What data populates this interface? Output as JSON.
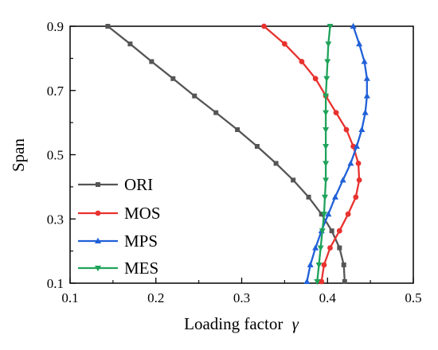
{
  "chart_data": {
    "type": "line",
    "xlabel": "Loading factor",
    "xlabel_symbol": "γ",
    "ylabel": "Span",
    "xlim": [
      0.1,
      0.5
    ],
    "ylim": [
      0.1,
      0.9
    ],
    "x_ticks": [
      "0.1",
      "0.2",
      "0.3",
      "0.4",
      "0.5"
    ],
    "x_tick_values": [
      0.1,
      0.2,
      0.3,
      0.4,
      0.5
    ],
    "y_ticks": [
      "0.1",
      "0.3",
      "0.5",
      "0.7",
      "0.9"
    ],
    "y_tick_values": [
      0.1,
      0.3,
      0.5,
      0.7,
      0.9
    ],
    "grid": false,
    "legend_position": "bottom-left",
    "series": [
      {
        "name": "ORI",
        "color": "#555555",
        "marker": "square",
        "points": [
          [
            0.144,
            0.9
          ],
          [
            0.17,
            0.845
          ],
          [
            0.195,
            0.79
          ],
          [
            0.22,
            0.737
          ],
          [
            0.245,
            0.683
          ],
          [
            0.27,
            0.631
          ],
          [
            0.295,
            0.578
          ],
          [
            0.318,
            0.526
          ],
          [
            0.34,
            0.473
          ],
          [
            0.36,
            0.421
          ],
          [
            0.378,
            0.368
          ],
          [
            0.393,
            0.315
          ],
          [
            0.405,
            0.263
          ],
          [
            0.414,
            0.21
          ],
          [
            0.419,
            0.157
          ],
          [
            0.42,
            0.105
          ]
        ]
      },
      {
        "name": "MOS",
        "color": "#e8322f",
        "marker": "circle",
        "points": [
          [
            0.326,
            0.9
          ],
          [
            0.35,
            0.845
          ],
          [
            0.37,
            0.79
          ],
          [
            0.386,
            0.737
          ],
          [
            0.398,
            0.683
          ],
          [
            0.41,
            0.631
          ],
          [
            0.422,
            0.578
          ],
          [
            0.43,
            0.526
          ],
          [
            0.436,
            0.473
          ],
          [
            0.437,
            0.421
          ],
          [
            0.433,
            0.368
          ],
          [
            0.424,
            0.315
          ],
          [
            0.414,
            0.263
          ],
          [
            0.403,
            0.21
          ],
          [
            0.396,
            0.157
          ],
          [
            0.393,
            0.105
          ]
        ]
      },
      {
        "name": "MPS",
        "color": "#2060d8",
        "marker": "triangle-up",
        "points": [
          [
            0.43,
            0.9
          ],
          [
            0.437,
            0.845
          ],
          [
            0.443,
            0.79
          ],
          [
            0.446,
            0.737
          ],
          [
            0.446,
            0.683
          ],
          [
            0.444,
            0.631
          ],
          [
            0.44,
            0.578
          ],
          [
            0.434,
            0.526
          ],
          [
            0.427,
            0.473
          ],
          [
            0.418,
            0.421
          ],
          [
            0.409,
            0.368
          ],
          [
            0.401,
            0.315
          ],
          [
            0.393,
            0.263
          ],
          [
            0.386,
            0.21
          ],
          [
            0.38,
            0.157
          ],
          [
            0.376,
            0.105
          ]
        ]
      },
      {
        "name": "MES",
        "color": "#1fa35a",
        "marker": "triangle-down",
        "points": [
          [
            0.403,
            0.9
          ],
          [
            0.401,
            0.845
          ],
          [
            0.4,
            0.79
          ],
          [
            0.399,
            0.737
          ],
          [
            0.398,
            0.683
          ],
          [
            0.398,
            0.631
          ],
          [
            0.398,
            0.578
          ],
          [
            0.398,
            0.526
          ],
          [
            0.398,
            0.473
          ],
          [
            0.398,
            0.421
          ],
          [
            0.397,
            0.368
          ],
          [
            0.396,
            0.315
          ],
          [
            0.394,
            0.263
          ],
          [
            0.392,
            0.21
          ],
          [
            0.39,
            0.157
          ],
          [
            0.388,
            0.105
          ]
        ]
      }
    ]
  }
}
